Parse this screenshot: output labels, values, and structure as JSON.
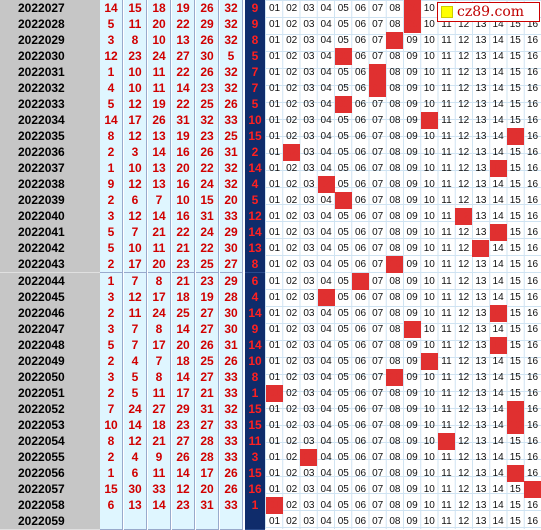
{
  "logo": {
    "text": "cz89.com",
    "icon": "yellow-square-icon"
  },
  "colors": {
    "red_ball": "#d00000",
    "blue_bg": "#0f2c6b",
    "hit": "#e03030",
    "green": "#22aa55",
    "issue_bg": "#c6c6c6",
    "cell_bg": "#dff6ff"
  },
  "rows": [
    {
      "issue": "2022027",
      "reds": [
        "14",
        "15",
        "18",
        "19",
        "26",
        "32"
      ],
      "blue": "9"
    },
    {
      "issue": "2022028",
      "reds": [
        "5",
        "11",
        "20",
        "22",
        "29",
        "32"
      ],
      "blue": "9"
    },
    {
      "issue": "2022029",
      "reds": [
        "3",
        "8",
        "10",
        "13",
        "26",
        "32"
      ],
      "blue": "8"
    },
    {
      "issue": "2022030",
      "reds": [
        "12",
        "23",
        "24",
        "27",
        "30",
        "5"
      ],
      "blue": "5"
    },
    {
      "issue": "2022031",
      "reds": [
        "1",
        "10",
        "11",
        "22",
        "26",
        "32"
      ],
      "blue": "7"
    },
    {
      "issue": "2022032",
      "reds": [
        "4",
        "10",
        "11",
        "14",
        "23",
        "32"
      ],
      "blue": "7"
    },
    {
      "issue": "2022033",
      "reds": [
        "5",
        "12",
        "19",
        "22",
        "25",
        "26"
      ],
      "blue": "5"
    },
    {
      "issue": "2022034",
      "reds": [
        "14",
        "17",
        "26",
        "31",
        "32",
        "33"
      ],
      "blue": "10"
    },
    {
      "issue": "2022035",
      "reds": [
        "8",
        "12",
        "13",
        "19",
        "23",
        "25"
      ],
      "blue": "15"
    },
    {
      "issue": "2022036",
      "reds": [
        "2",
        "3",
        "14",
        "16",
        "26",
        "31"
      ],
      "blue": "2"
    },
    {
      "issue": "2022037",
      "reds": [
        "1",
        "10",
        "13",
        "20",
        "22",
        "32"
      ],
      "blue": "14"
    },
    {
      "issue": "2022038",
      "reds": [
        "9",
        "12",
        "13",
        "16",
        "24",
        "32"
      ],
      "blue": "4"
    },
    {
      "issue": "2022039",
      "reds": [
        "2",
        "6",
        "7",
        "10",
        "15",
        "20"
      ],
      "blue": "5"
    },
    {
      "issue": "2022040",
      "reds": [
        "3",
        "12",
        "14",
        "16",
        "31",
        "33"
      ],
      "blue": "12"
    },
    {
      "issue": "2022041",
      "reds": [
        "5",
        "7",
        "21",
        "22",
        "24",
        "29"
      ],
      "blue": "14"
    },
    {
      "issue": "2022042",
      "reds": [
        "5",
        "10",
        "11",
        "21",
        "22",
        "30"
      ],
      "blue": "13"
    },
    {
      "issue": "2022043",
      "reds": [
        "2",
        "17",
        "20",
        "23",
        "25",
        "27"
      ],
      "blue": "8"
    },
    {
      "issue": "2022044",
      "reds": [
        "1",
        "7",
        "8",
        "21",
        "23",
        "29"
      ],
      "blue": "6"
    },
    {
      "issue": "2022045",
      "reds": [
        "3",
        "12",
        "17",
        "18",
        "19",
        "28"
      ],
      "blue": "4"
    },
    {
      "issue": "2022046",
      "reds": [
        "2",
        "11",
        "24",
        "25",
        "27",
        "30"
      ],
      "blue": "14"
    },
    {
      "issue": "2022047",
      "reds": [
        "3",
        "7",
        "8",
        "14",
        "27",
        "30"
      ],
      "blue": "9"
    },
    {
      "issue": "2022048",
      "reds": [
        "5",
        "7",
        "17",
        "20",
        "26",
        "31"
      ],
      "blue": "14"
    },
    {
      "issue": "2022049",
      "reds": [
        "2",
        "4",
        "7",
        "18",
        "25",
        "26"
      ],
      "blue": "10"
    },
    {
      "issue": "2022050",
      "reds": [
        "3",
        "5",
        "8",
        "14",
        "27",
        "33"
      ],
      "blue": "8"
    },
    {
      "issue": "2022051",
      "reds": [
        "2",
        "5",
        "11",
        "17",
        "21",
        "33"
      ],
      "blue": "1"
    },
    {
      "issue": "2022052",
      "reds": [
        "7",
        "24",
        "27",
        "29",
        "31",
        "32"
      ],
      "blue": "15"
    },
    {
      "issue": "2022053",
      "reds": [
        "10",
        "14",
        "18",
        "23",
        "27",
        "33"
      ],
      "blue": "15"
    },
    {
      "issue": "2022054",
      "reds": [
        "8",
        "12",
        "21",
        "27",
        "28",
        "33"
      ],
      "blue": "11"
    },
    {
      "issue": "2022055",
      "reds": [
        "2",
        "4",
        "9",
        "26",
        "28",
        "33"
      ],
      "blue": "3"
    },
    {
      "issue": "2022056",
      "reds": [
        "1",
        "6",
        "11",
        "14",
        "17",
        "26"
      ],
      "blue": "15"
    },
    {
      "issue": "2022057",
      "reds": [
        "15",
        "30",
        "33",
        "12",
        "20",
        "26"
      ],
      "blue": "16"
    },
    {
      "issue": "2022058",
      "reds": [
        "6",
        "13",
        "14",
        "23",
        "31",
        "33"
      ],
      "blue": "1"
    },
    {
      "issue": "2022059",
      "reds": [
        "",
        "",
        "",
        "",
        "",
        ""
      ],
      "blue": ""
    }
  ],
  "numbers": [
    "01",
    "02",
    "03",
    "04",
    "05",
    "06",
    "07",
    "08",
    "09",
    "10",
    "11",
    "12",
    "13",
    "14",
    "15",
    "16"
  ]
}
